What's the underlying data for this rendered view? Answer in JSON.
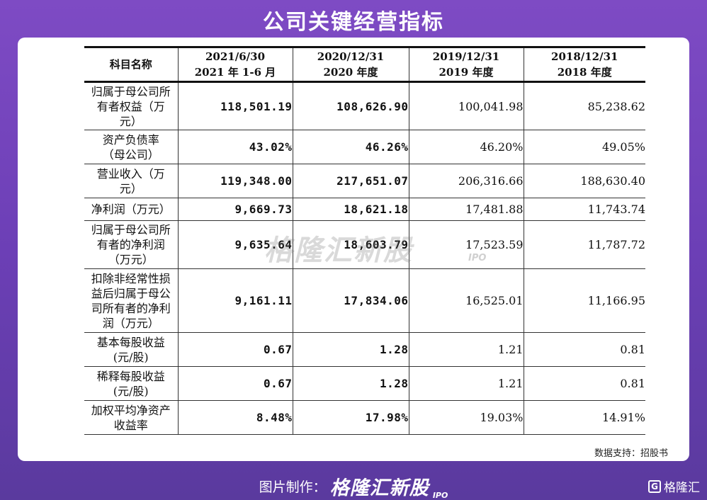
{
  "title": "公司关键经营指标",
  "table": {
    "header": [
      [
        "科目名称"
      ],
      [
        "2021/6/30",
        "2021 年 1-6 月"
      ],
      [
        "2020/12/31",
        "2020 年度"
      ],
      [
        "2019/12/31",
        "2019 年度"
      ],
      [
        "2018/12/31",
        "2018 年度"
      ]
    ],
    "rows": [
      {
        "label": [
          "归属于母公司所",
          "有者权益（万",
          "元）"
        ],
        "values": [
          "118,501.19",
          "108,626.90",
          "100,041.98",
          "85,238.62"
        ]
      },
      {
        "label": [
          "资产负债率",
          "（母公司）"
        ],
        "values": [
          "43.02%",
          "46.26%",
          "46.20%",
          "49.05%"
        ]
      },
      {
        "label": [
          "营业收入（万",
          "元）"
        ],
        "values": [
          "119,348.00",
          "217,651.07",
          "206,316.66",
          "188,630.40"
        ]
      },
      {
        "label": [
          "净利润（万元）"
        ],
        "values": [
          "9,669.73",
          "18,621.18",
          "17,481.88",
          "11,743.74"
        ]
      },
      {
        "label": [
          "归属于母公司所",
          "有者的净利润",
          "（万元）"
        ],
        "values": [
          "9,635.64",
          "18,603.79",
          "17,523.59",
          "11,787.72"
        ]
      },
      {
        "label": [
          "扣除非经常性损",
          "益后归属于母公",
          "司所有者的净利",
          "润（万元）"
        ],
        "values": [
          "9,161.11",
          "17,834.06",
          "16,525.01",
          "11,166.95"
        ]
      },
      {
        "label": [
          "基本每股收益",
          "(元/股)"
        ],
        "values": [
          "0.67",
          "1.28",
          "1.21",
          "0.81"
        ]
      },
      {
        "label": [
          "稀释每股收益",
          "(元/股)"
        ],
        "values": [
          "0.67",
          "1.28",
          "1.21",
          "0.81"
        ]
      },
      {
        "label": [
          "加权平均净资产",
          "收益率"
        ],
        "values": [
          "8.48%",
          "17.98%",
          "19.03%",
          "14.91%"
        ]
      }
    ]
  },
  "watermark": {
    "text": "格隆汇新股",
    "suffix": "IPO"
  },
  "source": "数据支持：招股书",
  "footer": {
    "credit": "图片制作：",
    "brand": "格隆汇新股",
    "brand_suffix": "IPO"
  },
  "corner_logo": {
    "text": "格隆汇",
    "icon": "g-logo-icon"
  },
  "colors": {
    "background_top": "#7e4bc4",
    "background_bottom": "#5a3a9e",
    "card": "#ffffff"
  }
}
